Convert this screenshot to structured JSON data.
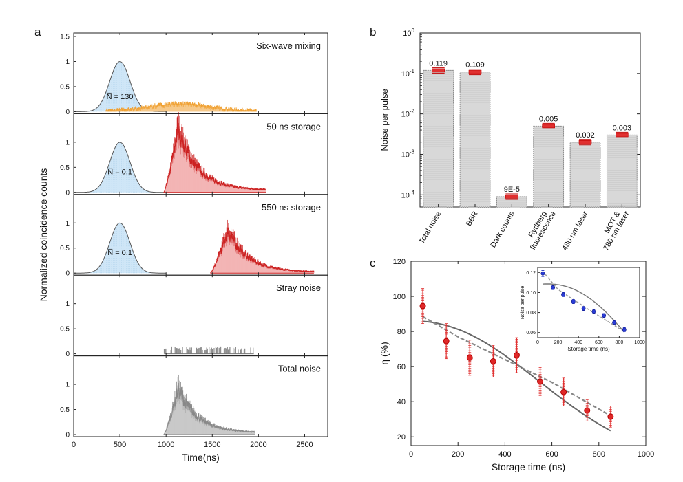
{
  "chart_data": [
    {
      "panel": "a",
      "type": "area",
      "xlabel": "Time(ns)",
      "ylabel": "Normalized coincidence counts",
      "xlim": [
        0,
        2750
      ],
      "xticks": [
        0,
        500,
        1000,
        1500,
        2000,
        2500
      ],
      "ylim": [
        0,
        1.5
      ],
      "yticks": [
        0,
        0.5,
        1,
        1.5
      ],
      "yticks_top_panel": [
        0,
        0.5,
        1,
        1.5
      ],
      "yticks_other_panels": [
        0,
        0.5,
        1
      ],
      "subpanels": [
        {
          "title": "Six-wave mixing",
          "nbar_label": "N̅ = 130",
          "gauss": {
            "center": 500,
            "sigma": 110,
            "amp": 1.0
          },
          "signal": {
            "type": "sixwave",
            "start": 350,
            "end": 1980,
            "peak_x": 1150,
            "peak_y": 0.15,
            "color": "#f0a030"
          }
        },
        {
          "title": "50 ns storage",
          "nbar_label": "N̅ = 0.1",
          "gauss": {
            "center": 500,
            "sigma": 110,
            "amp": 1.0
          },
          "signal": {
            "type": "decay",
            "start": 975,
            "end": 2080,
            "peak_x": 1130,
            "peak_y": 1.25,
            "tail_y": 0.04,
            "color": "#cc2222"
          }
        },
        {
          "title": "550 ns storage",
          "nbar_label": "N̅ = 0.1",
          "gauss": {
            "center": 500,
            "sigma": 110,
            "amp": 1.0
          },
          "signal": {
            "type": "decay",
            "start": 1480,
            "end": 2600,
            "peak_x": 1670,
            "peak_y": 0.85,
            "tail_y": 0.02,
            "color": "#cc2222"
          }
        },
        {
          "title": "Stray noise",
          "nbar_label": "",
          "gauss": null,
          "signal": {
            "type": "stray",
            "start": 980,
            "end": 1950,
            "peak_y": 0.15,
            "color": "#888888"
          }
        },
        {
          "title": "Total noise",
          "nbar_label": "",
          "gauss": null,
          "signal": {
            "type": "decay",
            "start": 975,
            "end": 1960,
            "peak_x": 1130,
            "peak_y": 0.9,
            "tail_y": 0.03,
            "color": "#888888"
          }
        }
      ]
    },
    {
      "panel": "b",
      "type": "bar",
      "ylabel": "Noise per pulse",
      "yscale": "log",
      "ylim": [
        5e-05,
        1
      ],
      "yticks": [
        "10^-4",
        "10^-3",
        "10^-2",
        "10^-1",
        "10^0"
      ],
      "categories": [
        "Total noise",
        "BBR",
        "Dark counts",
        "Rydberg fluorescence",
        "480 nm laser",
        "MOT & 780 nm laser"
      ],
      "tick_labels": [
        [
          "Total noise"
        ],
        [
          "BBR"
        ],
        [
          "Dark counts"
        ],
        [
          "Rydberg",
          "fluorescence"
        ],
        [
          "480 nm laser"
        ],
        [
          "MOT &",
          "780 nm laser"
        ]
      ],
      "values": [
        0.119,
        0.109,
        9e-05,
        0.005,
        0.002,
        0.003
      ],
      "value_labels": [
        "0.119",
        "0.109",
        "9E-5",
        "0.005",
        "0.002",
        "0.003"
      ]
    },
    {
      "panel": "c",
      "type": "scatter",
      "xlabel": "Storage time (ns)",
      "ylabel": "η (%)",
      "xlim": [
        0,
        1000
      ],
      "ylim": [
        15,
        120
      ],
      "xticks": [
        0,
        200,
        400,
        600,
        800,
        1000
      ],
      "yticks": [
        20,
        40,
        60,
        80,
        100,
        120
      ],
      "x": [
        50,
        150,
        250,
        350,
        450,
        550,
        650,
        750,
        850
      ],
      "y": [
        94.5,
        74.5,
        65.0,
        63.0,
        66.5,
        51.5,
        45.5,
        35.0,
        31.5
      ],
      "yerr": [
        10,
        10,
        10,
        9,
        10,
        8,
        8,
        6,
        6
      ],
      "fit_dashed": [
        [
          50,
          88.5
        ],
        [
          200,
          77
        ],
        [
          400,
          64
        ],
        [
          600,
          51
        ],
        [
          850,
          32
        ]
      ],
      "inset": {
        "xlabel": "Storage time (ns)",
        "ylabel": "Noise per pulse",
        "xlim": [
          0,
          1000
        ],
        "ylim": [
          0.055,
          0.125
        ],
        "xticks": [
          0,
          200,
          400,
          600,
          800,
          1000
        ],
        "yticks": [
          "0.06",
          "0.08",
          "0.10",
          "0.12"
        ],
        "x": [
          50,
          150,
          250,
          350,
          450,
          550,
          650,
          750,
          850
        ],
        "y": [
          0.119,
          0.105,
          0.098,
          0.091,
          0.084,
          0.081,
          0.077,
          0.07,
          0.063
        ],
        "yerr": [
          0.003,
          0.002,
          0.002,
          0.002,
          0.002,
          0.002,
          0.002,
          0.002,
          0.002
        ],
        "fit_dashed": [
          [
            50,
            0.121
          ],
          [
            200,
            0.103
          ],
          [
            500,
            0.083
          ],
          [
            850,
            0.061
          ]
        ],
        "fit_solid": [
          [
            50,
            0.108
          ],
          [
            300,
            0.102
          ],
          [
            600,
            0.085
          ],
          [
            850,
            0.062
          ]
        ]
      }
    }
  ],
  "labels": {
    "a": "a",
    "b": "b",
    "c": "c"
  }
}
